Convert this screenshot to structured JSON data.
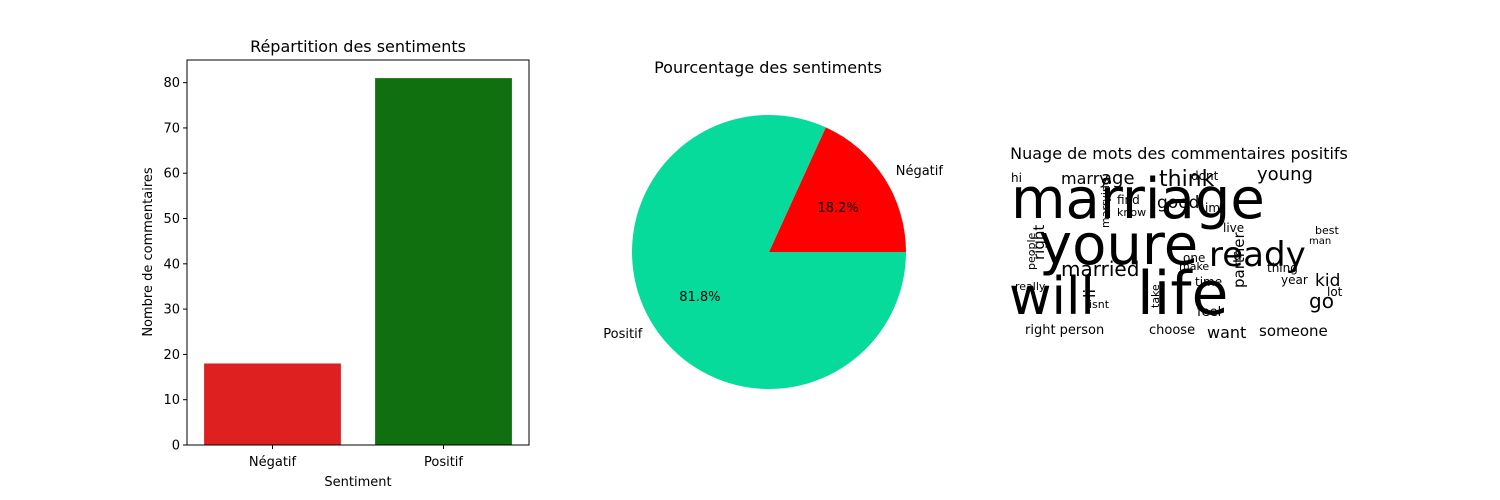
{
  "chart_data": [
    {
      "type": "bar",
      "title": "Répartition des sentiments",
      "xlabel": "Sentiment",
      "ylabel": "Nombre de commentaires",
      "categories": [
        "Négatif",
        "Positif"
      ],
      "values": [
        18,
        81
      ],
      "colors": [
        "#de2020",
        "#107010"
      ],
      "ylim": [
        0,
        85
      ],
      "yticks": [
        0,
        10,
        20,
        30,
        40,
        50,
        60,
        70,
        80
      ],
      "grid": false
    },
    {
      "type": "pie",
      "title": "Pourcentage des sentiments",
      "labels": [
        "Négatif",
        "Positif"
      ],
      "values": [
        18.2,
        81.8
      ],
      "autopct": [
        "18.2%",
        "81.8%"
      ],
      "colors": [
        "#ff0000",
        "#06db9b"
      ]
    },
    {
      "type": "wordcloud",
      "title": "Nuage de mots des commentaires positifs",
      "words": [
        {
          "text": "marriage",
          "color": "#48c16e"
        },
        {
          "text": "youre",
          "color": "#440f6b"
        },
        {
          "text": "will",
          "color": "#3e4a89"
        },
        {
          "text": "life",
          "color": "#2e6d8e"
        },
        {
          "text": "ready",
          "color": "#5ec962"
        },
        {
          "text": "married",
          "color": "#35b779"
        },
        {
          "text": "think",
          "color": "#31688e"
        },
        {
          "text": "young",
          "color": "#7ad151"
        },
        {
          "text": "age",
          "color": "#b5de2b"
        },
        {
          "text": "marry",
          "color": "#21918c"
        },
        {
          "text": "good",
          "color": "#26828e"
        },
        {
          "text": "right",
          "color": "#404387"
        },
        {
          "text": "partner",
          "color": "#39568c"
        },
        {
          "text": "kid",
          "color": "#2a788e"
        },
        {
          "text": "go",
          "color": "#20a486"
        },
        {
          "text": "want",
          "color": "#2c728e"
        },
        {
          "text": "someone",
          "color": "#c8e020"
        },
        {
          "text": "right person",
          "color": "#7ad151"
        },
        {
          "text": "choose",
          "color": "#a0da39"
        },
        {
          "text": "feel",
          "color": "#24868e"
        },
        {
          "text": "year",
          "color": "#46327e"
        },
        {
          "text": "thing",
          "color": "#3b528b"
        },
        {
          "text": "best",
          "color": "#1f988b"
        },
        {
          "text": "man",
          "color": "#482475"
        },
        {
          "text": "lot",
          "color": "#fde725"
        },
        {
          "text": "time",
          "color": "#472d7b"
        },
        {
          "text": "make",
          "color": "#2f6c8e"
        },
        {
          "text": "one",
          "color": "#22a884"
        },
        {
          "text": "live",
          "color": "#433e85"
        },
        {
          "text": "people",
          "color": "#365c8d"
        },
        {
          "text": "really",
          "color": "#3f4788"
        },
        {
          "text": "isnt",
          "color": "#414487"
        },
        {
          "text": "find",
          "color": "#25858e"
        },
        {
          "text": "know",
          "color": "#6ece58"
        },
        {
          "text": "dont",
          "color": "#d8e219"
        },
        {
          "text": "take",
          "color": "#2d708e"
        },
        {
          "text": "im",
          "color": "#453581"
        },
        {
          "text": "li",
          "color": "#3a548c"
        },
        {
          "text": "hi",
          "color": "#84d44b"
        },
        {
          "text": "marrying",
          "color": "#27ad81"
        },
        {
          "text": "u",
          "color": "#1f9e89"
        }
      ]
    }
  ]
}
